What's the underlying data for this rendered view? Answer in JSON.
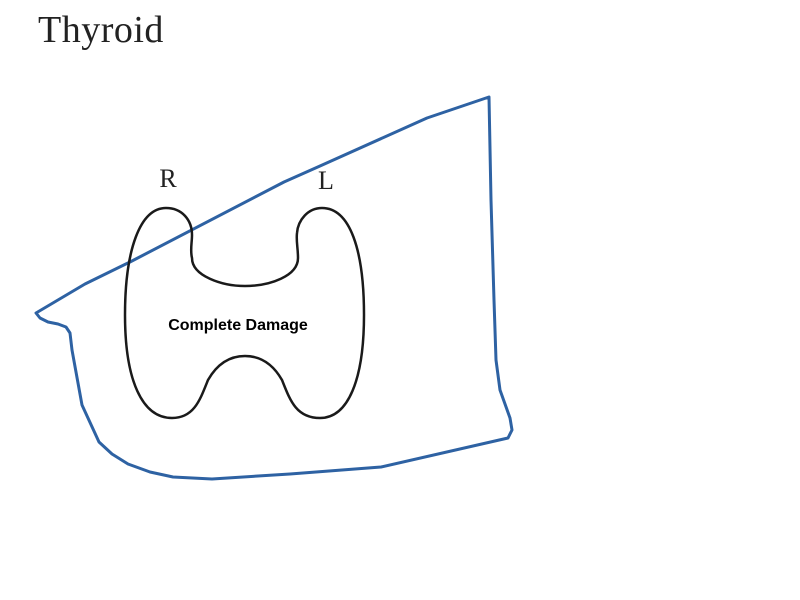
{
  "title": "Thyroid",
  "labels": {
    "right_lobe": "R",
    "left_lobe": "L",
    "annotation": "Complete Damage"
  },
  "colors": {
    "thyroid_outline": "#1a1a1a",
    "region_outline": "#2e62a3",
    "text": "#222222"
  }
}
